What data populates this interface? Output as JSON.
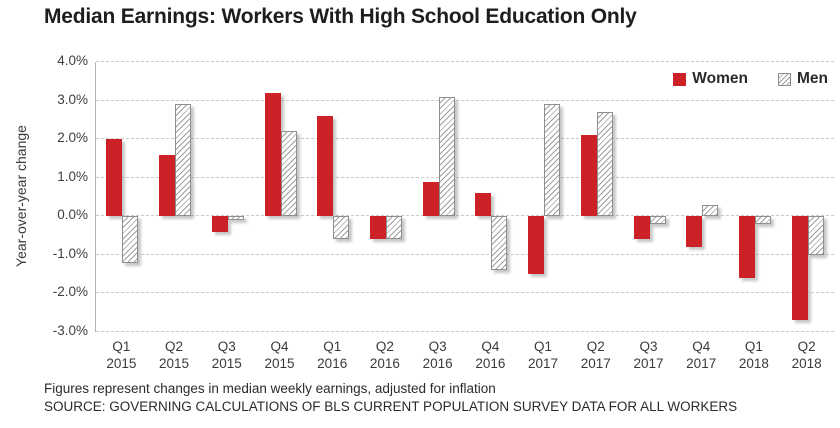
{
  "title": "Median Earnings: Workers With High School Education Only",
  "footnote": "Figures represent changes in median weekly earnings, adjusted for inflation",
  "source": "SOURCE: GOVERNING CALCULATIONS OF BLS CURRENT POPULATION SURVEY DATA FOR ALL WORKERS",
  "colors": {
    "women_bar": "#cb2127",
    "men_hatch": "#9e9e9e",
    "men_border": "#8e8e8e",
    "gridline": "#c9c9c9",
    "text": "#2b2b2b"
  },
  "chart_data": {
    "type": "bar",
    "title": "Median Earnings: Workers With High School Education Only",
    "xlabel": "",
    "ylabel": "Year-over-year change",
    "ylim": [
      -3.0,
      4.0
    ],
    "grid": "horizontal-dashed",
    "legend_position": "top-right",
    "yticks": [
      {
        "v": 4,
        "label": "4.0%"
      },
      {
        "v": 3,
        "label": "3.0%"
      },
      {
        "v": 2,
        "label": "2.0%"
      },
      {
        "v": 1,
        "label": "1.0%"
      },
      {
        "v": 0,
        "label": "0.0%"
      },
      {
        "v": -1,
        "label": "-1.0%"
      },
      {
        "v": -2,
        "label": "-2.0%"
      },
      {
        "v": -3,
        "label": "-3.0%"
      }
    ],
    "categories": [
      {
        "q": "Q1",
        "year": "2015"
      },
      {
        "q": "Q2",
        "year": "2015"
      },
      {
        "q": "Q3",
        "year": "2015"
      },
      {
        "q": "Q4",
        "year": "2015"
      },
      {
        "q": "Q1",
        "year": "2016"
      },
      {
        "q": "Q2",
        "year": "2016"
      },
      {
        "q": "Q3",
        "year": "2016"
      },
      {
        "q": "Q4",
        "year": "2016"
      },
      {
        "q": "Q1",
        "year": "2017"
      },
      {
        "q": "Q2",
        "year": "2017"
      },
      {
        "q": "Q3",
        "year": "2017"
      },
      {
        "q": "Q4",
        "year": "2017"
      },
      {
        "q": "Q1",
        "year": "2018"
      },
      {
        "q": "Q2",
        "year": "2018"
      }
    ],
    "series": [
      {
        "name": "Women",
        "values": [
          2.0,
          1.6,
          -0.4,
          3.2,
          2.6,
          -0.6,
          0.9,
          0.6,
          -1.5,
          2.1,
          -0.6,
          -0.8,
          -1.6,
          -2.7
        ]
      },
      {
        "name": "Men",
        "values": [
          -1.2,
          2.9,
          -0.1,
          2.2,
          -0.6,
          -0.6,
          3.1,
          -1.4,
          2.9,
          2.7,
          -0.2,
          0.3,
          -0.2,
          -1.0
        ]
      }
    ]
  }
}
